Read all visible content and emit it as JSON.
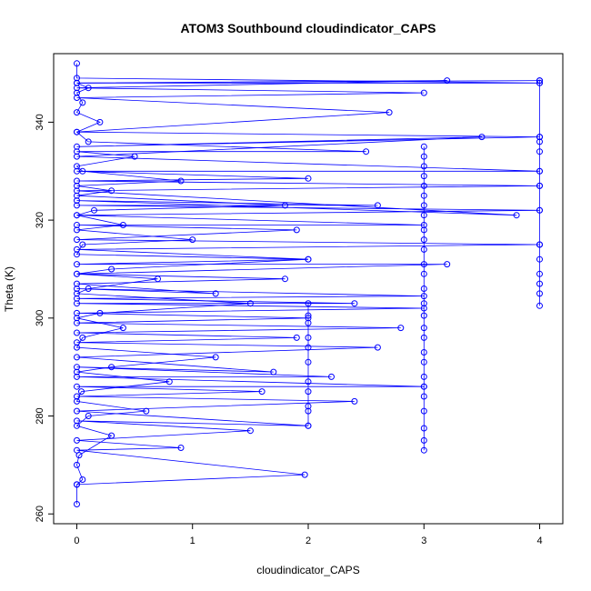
{
  "chart_data": {
    "type": "scatter",
    "title": "ATOM3 Southbound cloudindicator_CAPS",
    "xlabel": "cloudindicator_CAPS",
    "ylabel": "Theta (K)",
    "xlim": [
      -0.2,
      4.2
    ],
    "ylim": [
      258,
      354
    ],
    "xticks": [
      0,
      1,
      2,
      3,
      4
    ],
    "yticks": [
      260,
      280,
      300,
      320,
      340
    ],
    "grid": false,
    "legend": "none",
    "color": "#0000ff",
    "marker": "open-circle",
    "connected": true,
    "series": [
      {
        "points": [
          [
            0,
            262
          ],
          [
            0,
            266
          ],
          [
            0.05,
            267
          ],
          [
            0,
            270
          ],
          [
            0.02,
            272
          ],
          [
            0.3,
            276
          ],
          [
            0,
            278
          ],
          [
            0.1,
            280
          ],
          [
            0.6,
            281
          ],
          [
            0,
            283
          ],
          [
            0.04,
            285
          ],
          [
            0.8,
            287
          ],
          [
            0,
            289
          ],
          [
            0.3,
            290
          ],
          [
            1.2,
            292
          ],
          [
            0,
            294
          ],
          [
            0.05,
            296
          ],
          [
            0.4,
            298
          ],
          [
            0,
            300
          ],
          [
            0.2,
            301
          ],
          [
            1.5,
            303
          ],
          [
            0,
            305
          ],
          [
            0.1,
            306
          ],
          [
            0.7,
            308
          ],
          [
            0,
            309
          ],
          [
            0.3,
            310
          ],
          [
            2.0,
            312
          ],
          [
            0,
            313
          ],
          [
            0.05,
            315
          ],
          [
            1.0,
            316
          ],
          [
            0,
            318
          ],
          [
            0.4,
            319
          ],
          [
            0,
            321
          ],
          [
            0.15,
            322
          ],
          [
            1.8,
            323
          ],
          [
            0,
            325
          ],
          [
            0.3,
            326
          ],
          [
            0,
            327
          ],
          [
            0.9,
            328
          ],
          [
            0.05,
            330
          ],
          [
            0,
            331
          ],
          [
            0.5,
            333
          ],
          [
            0,
            334
          ],
          [
            2.5,
            334
          ],
          [
            0.1,
            336
          ],
          [
            0,
            338
          ],
          [
            0.2,
            340
          ],
          [
            0,
            342
          ],
          [
            0.05,
            344
          ],
          [
            0,
            346
          ],
          [
            0.1,
            347
          ],
          [
            0,
            348
          ],
          [
            4,
            348
          ],
          [
            0,
            349
          ],
          [
            0,
            352
          ]
        ]
      },
      {
        "points": [
          [
            0,
            266
          ],
          [
            1.97,
            268
          ],
          [
            0,
            273
          ],
          [
            0.9,
            273.5
          ],
          [
            0,
            275
          ],
          [
            1.5,
            277
          ],
          [
            0,
            279
          ],
          [
            2.0,
            278
          ],
          [
            0,
            281
          ],
          [
            2.4,
            283
          ],
          [
            0,
            284
          ],
          [
            1.6,
            285
          ],
          [
            0,
            286
          ],
          [
            3.0,
            286
          ],
          [
            0,
            288
          ],
          [
            2.2,
            288
          ],
          [
            0,
            290
          ],
          [
            1.7,
            289
          ],
          [
            0,
            292
          ],
          [
            2.6,
            294
          ],
          [
            0,
            295
          ],
          [
            1.9,
            296
          ],
          [
            0,
            297
          ],
          [
            2.8,
            298
          ],
          [
            0,
            299
          ],
          [
            2.0,
            300
          ],
          [
            0,
            301
          ],
          [
            3.0,
            302
          ],
          [
            0,
            303
          ],
          [
            2.4,
            303
          ],
          [
            0,
            304
          ],
          [
            3.0,
            304.5
          ],
          [
            0,
            306
          ],
          [
            1.2,
            305
          ],
          [
            0,
            307
          ],
          [
            1.8,
            308
          ],
          [
            0,
            309
          ],
          [
            3.2,
            311
          ],
          [
            0,
            311
          ],
          [
            2.0,
            312
          ],
          [
            0,
            314
          ],
          [
            4.0,
            315
          ],
          [
            0,
            316
          ],
          [
            1.9,
            318
          ],
          [
            0,
            319
          ],
          [
            3.0,
            319
          ],
          [
            0,
            321
          ],
          [
            4.0,
            322
          ],
          [
            0,
            323
          ],
          [
            2.6,
            323
          ],
          [
            0,
            324
          ],
          [
            3.8,
            321
          ],
          [
            0,
            326
          ],
          [
            4.0,
            327
          ],
          [
            0,
            328
          ],
          [
            2.0,
            328.5
          ],
          [
            0,
            330
          ],
          [
            4.0,
            330
          ],
          [
            0,
            333
          ],
          [
            3.5,
            337
          ],
          [
            0,
            335
          ],
          [
            4.0,
            337
          ],
          [
            0,
            338
          ],
          [
            2.7,
            342
          ],
          [
            0,
            345
          ],
          [
            3.0,
            346
          ],
          [
            0,
            347
          ],
          [
            3.2,
            348.5
          ],
          [
            0,
            348
          ],
          [
            4.0,
            348.5
          ]
        ]
      },
      {
        "points": [
          [
            3,
            273
          ],
          [
            3,
            275
          ],
          [
            3,
            277.5
          ],
          [
            3,
            281
          ],
          [
            3,
            284
          ],
          [
            3,
            286
          ],
          [
            3,
            288
          ],
          [
            3,
            291
          ],
          [
            3,
            293
          ],
          [
            3,
            296
          ],
          [
            3,
            298
          ],
          [
            3,
            300.5
          ],
          [
            3,
            303
          ],
          [
            3,
            306
          ],
          [
            3,
            309
          ],
          [
            3,
            311
          ],
          [
            3,
            314
          ],
          [
            3,
            316
          ],
          [
            3,
            318
          ],
          [
            3,
            321
          ],
          [
            3,
            323
          ],
          [
            3,
            325
          ],
          [
            3,
            327
          ],
          [
            3,
            329
          ],
          [
            3,
            331
          ],
          [
            3,
            333
          ],
          [
            3,
            335
          ]
        ]
      },
      {
        "points": [
          [
            4,
            302.5
          ],
          [
            4,
            305
          ],
          [
            4,
            307
          ],
          [
            4,
            309
          ],
          [
            4,
            312
          ],
          [
            4,
            315
          ],
          [
            4,
            322
          ],
          [
            4,
            327
          ],
          [
            4,
            330
          ],
          [
            4,
            334
          ],
          [
            4,
            336
          ],
          [
            4,
            337
          ],
          [
            4,
            348
          ],
          [
            4,
            348.5
          ]
        ]
      },
      {
        "points": [
          [
            2,
            278
          ],
          [
            2,
            281
          ],
          [
            2,
            282
          ],
          [
            2,
            285
          ],
          [
            2,
            287
          ],
          [
            2,
            291
          ],
          [
            2,
            294
          ],
          [
            2,
            296
          ],
          [
            2,
            299
          ],
          [
            2,
            300.5
          ],
          [
            2,
            303
          ]
        ]
      }
    ]
  }
}
